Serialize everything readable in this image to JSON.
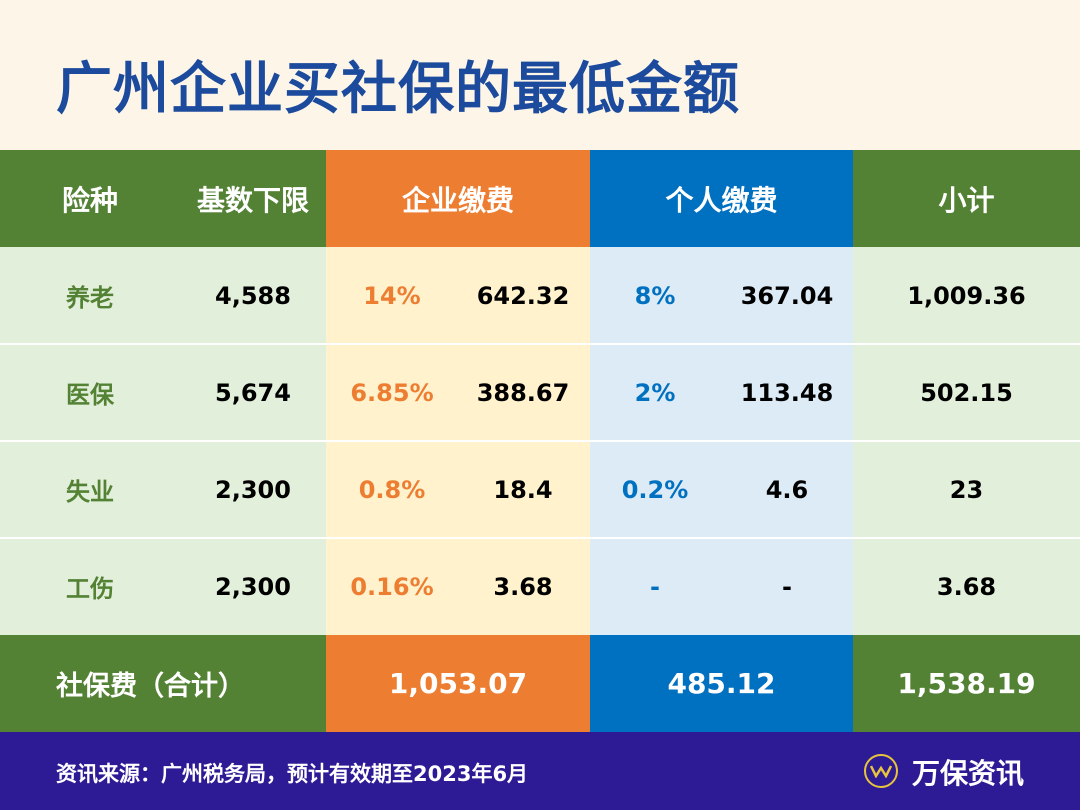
{
  "title": "广州企业买社保的最低金额",
  "colors": {
    "green": "#548235",
    "orange": "#ed7d31",
    "blue": "#0070c0",
    "light_green": "#e2efda",
    "light_orange": "#fff2cc",
    "light_blue": "#ddebf7",
    "footer": "#2d1b95"
  },
  "header": {
    "type": "险种",
    "base": "基数下限",
    "company": "企业缴费",
    "personal": "个人缴费",
    "subtotal": "小计"
  },
  "rows": [
    {
      "type": "养老",
      "base": "4,588",
      "c_rate": "14%",
      "c_amt": "642.32",
      "p_rate": "8%",
      "p_amt": "367.04",
      "subtotal": "1,009.36"
    },
    {
      "type": "医保",
      "base": "5,674",
      "c_rate": "6.85%",
      "c_amt": "388.67",
      "p_rate": "2%",
      "p_amt": "113.48",
      "subtotal": "502.15"
    },
    {
      "type": "失业",
      "base": "2,300",
      "c_rate": "0.8%",
      "c_amt": "18.4",
      "p_rate": "0.2%",
      "p_amt": "4.6",
      "subtotal": "23"
    },
    {
      "type": "工伤",
      "base": "2,300",
      "c_rate": "0.16%",
      "c_amt": "3.68",
      "p_rate": "-",
      "p_amt": "-",
      "subtotal": "3.68"
    }
  ],
  "total": {
    "label": "社保费（合计）",
    "company": "1,053.07",
    "personal": "485.12",
    "subtotal": "1,538.19"
  },
  "footer": {
    "source": "资讯来源：广州税务局，预计有效期至2023年6月",
    "brand": "万保资讯",
    "logo_icon": "w-circle-logo"
  }
}
